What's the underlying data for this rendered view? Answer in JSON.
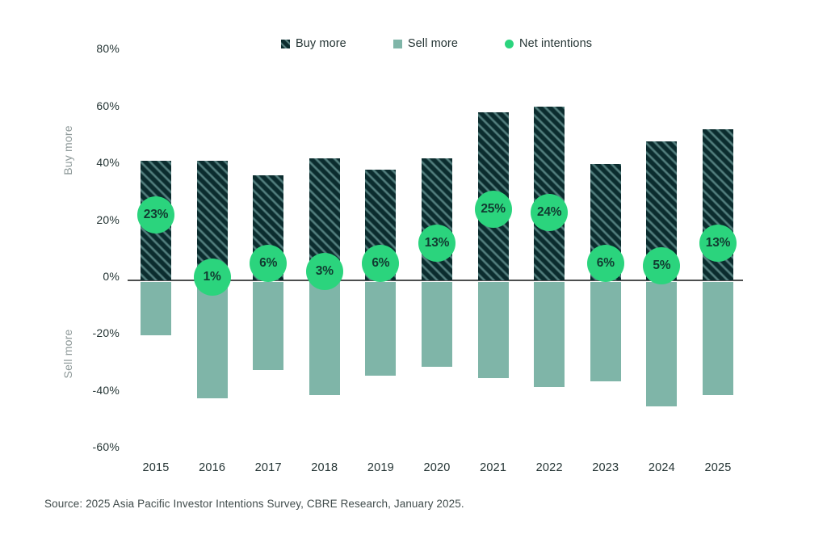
{
  "legend": {
    "items": [
      {
        "label": "Buy more",
        "marker": "hatch-square"
      },
      {
        "label": "Sell more",
        "marker": "solid-square"
      },
      {
        "label": "Net intentions",
        "marker": "solid-circle"
      }
    ]
  },
  "axis": {
    "y_ticks": [
      "80%",
      "60%",
      "40%",
      "20%",
      "0%",
      "-20%",
      "-40%",
      "-60%"
    ],
    "left_label_top": "Buy more",
    "left_label_bottom": "Sell more"
  },
  "source": "Source: 2025 Asia Pacific Investor Intentions Survey, CBRE Research, January 2025.",
  "colors": {
    "buy_bar_dark": "#0b2c2e",
    "buy_bar_hatch_stripe": "#54807f",
    "sell_bar": "#7fb5a8",
    "net_bubble": "#2bd47d",
    "net_bubble_text": "#113b31",
    "axis_line": "#4d4f4f"
  },
  "chart_data": {
    "type": "bar",
    "title": "",
    "xlabel": "",
    "ylabel": "Buy more / Sell more",
    "ylim": [
      -60,
      80
    ],
    "grid": false,
    "legend_position": "top",
    "categories": [
      "2015",
      "2016",
      "2017",
      "2018",
      "2019",
      "2020",
      "2021",
      "2022",
      "2023",
      "2024",
      "2025"
    ],
    "series": [
      {
        "name": "Buy more",
        "values": [
          42,
          42,
          37,
          43,
          39,
          43,
          59,
          61,
          41,
          49,
          53
        ]
      },
      {
        "name": "Sell more",
        "values": [
          -19,
          -41,
          -31,
          -40,
          -33,
          -30,
          -34,
          -37,
          -35,
          -44,
          -40
        ]
      },
      {
        "name": "Net intentions",
        "values": [
          23,
          1,
          6,
          3,
          6,
          13,
          25,
          24,
          6,
          5,
          13
        ]
      }
    ],
    "net_label_format": "{value}%"
  }
}
